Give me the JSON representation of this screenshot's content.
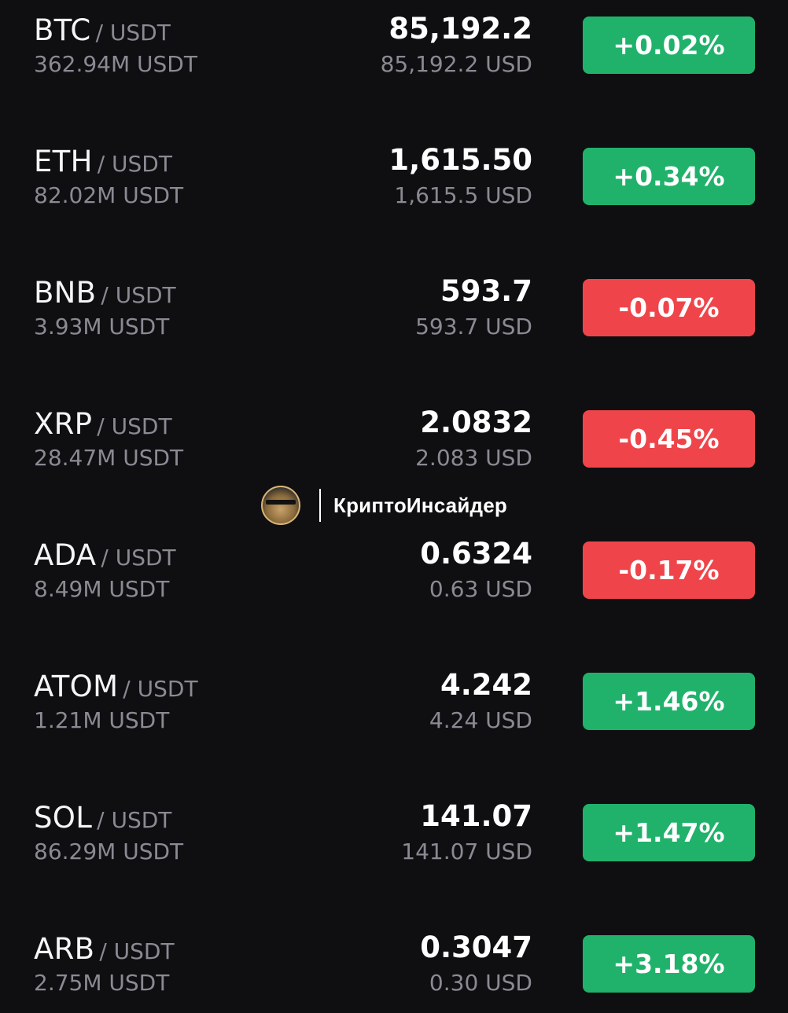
{
  "theme": {
    "background": "#0f0f12",
    "positive": "#20b26b",
    "negative": "#ef454a",
    "muted_text": "#8a8a93"
  },
  "markets": [
    {
      "base": "BTC",
      "quote": "/ USDT",
      "volume": "362.94M USDT",
      "price": "85,192.2",
      "price_usd": "85,192.2 USD",
      "change": "+0.02%",
      "direction": "up"
    },
    {
      "base": "ETH",
      "quote": "/ USDT",
      "volume": "82.02M USDT",
      "price": "1,615.50",
      "price_usd": "1,615.5 USD",
      "change": "+0.34%",
      "direction": "up"
    },
    {
      "base": "BNB",
      "quote": "/ USDT",
      "volume": "3.93M USDT",
      "price": "593.7",
      "price_usd": "593.7 USD",
      "change": "-0.07%",
      "direction": "down"
    },
    {
      "base": "XRP",
      "quote": "/ USDT",
      "volume": "28.47M USDT",
      "price": "2.0832",
      "price_usd": "2.083 USD",
      "change": "-0.45%",
      "direction": "down"
    },
    {
      "base": "ADA",
      "quote": "/ USDT",
      "volume": "8.49M USDT",
      "price": "0.6324",
      "price_usd": "0.63 USD",
      "change": "-0.17%",
      "direction": "down"
    },
    {
      "base": "ATOM",
      "quote": "/ USDT",
      "volume": "1.21M USDT",
      "price": "4.242",
      "price_usd": "4.24 USD",
      "change": "+1.46%",
      "direction": "up"
    },
    {
      "base": "SOL",
      "quote": "/ USDT",
      "volume": "86.29M USDT",
      "price": "141.07",
      "price_usd": "141.07 USD",
      "change": "+1.47%",
      "direction": "up"
    },
    {
      "base": "ARB",
      "quote": "/ USDT",
      "volume": "2.75M USDT",
      "price": "0.3047",
      "price_usd": "0.30 USD",
      "change": "+3.18%",
      "direction": "up"
    }
  ],
  "watermark": {
    "name": "КриптоИнсайдер",
    "avatar_icon": "portrait-avatar-icon",
    "avatar_text": "КриптоИнсайдер"
  }
}
